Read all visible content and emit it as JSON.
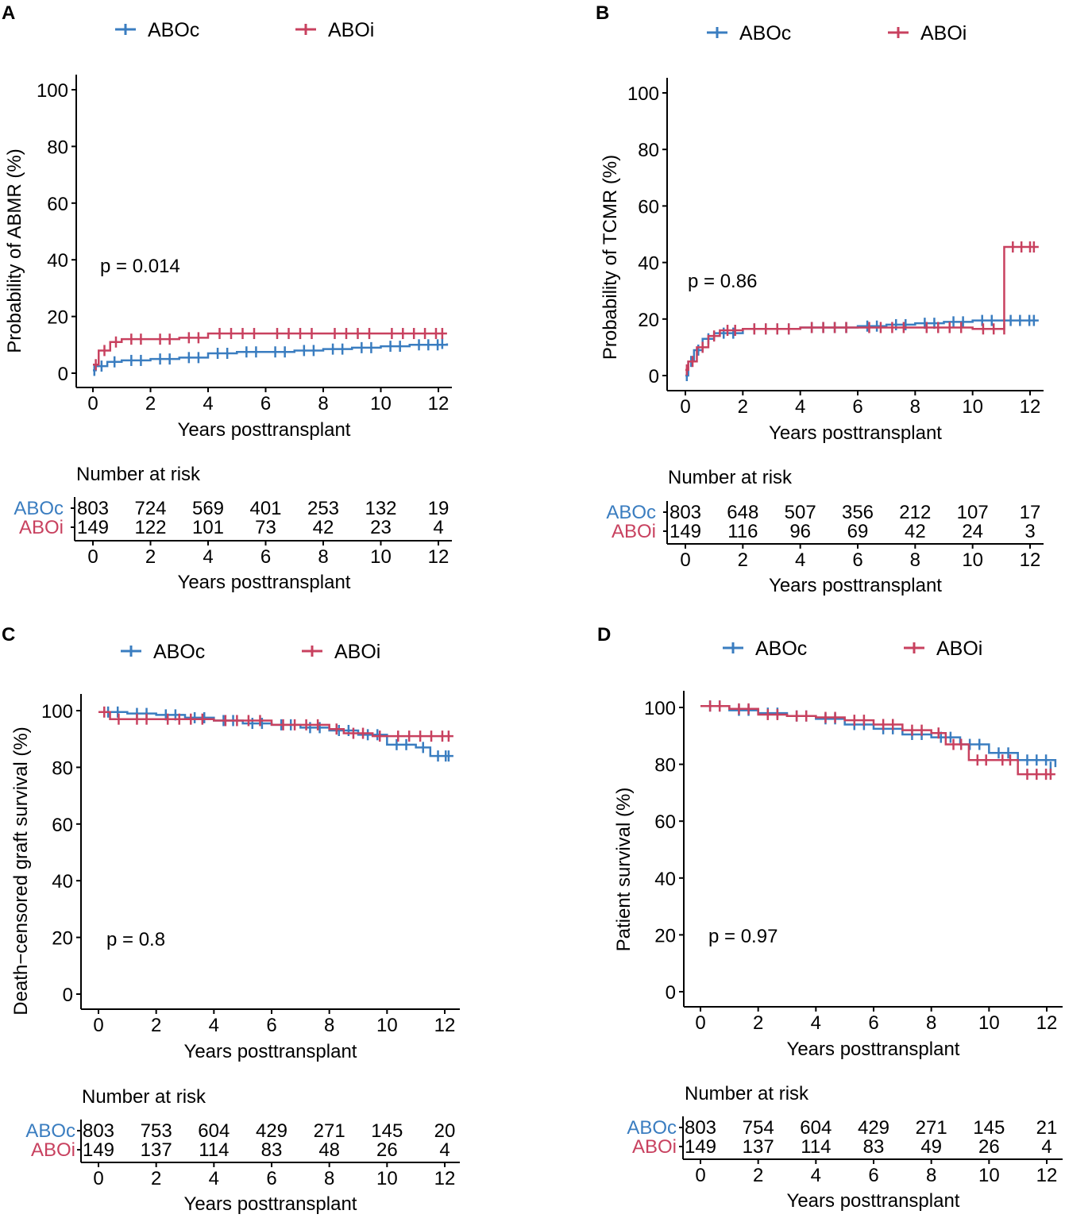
{
  "colors": {
    "aboc": "#3a7dc0",
    "aboi": "#c8415f"
  },
  "legend": {
    "aboc": "ABOc",
    "aboi": "ABOi"
  },
  "chart_data": [
    {
      "type": "line",
      "panel": "A",
      "ylabel": "Probability of ABMR (%)",
      "xlabel": "Years posttransplant",
      "xlim": [
        0,
        12
      ],
      "ylim": [
        0,
        100
      ],
      "xticks": [
        0,
        2,
        4,
        6,
        8,
        10,
        12
      ],
      "yticks": [
        0,
        20,
        40,
        60,
        80,
        100
      ],
      "pvalue": "p = 0.014",
      "series": [
        {
          "name": "ABOc",
          "x": [
            0,
            0.1,
            0.5,
            1,
            2,
            3,
            4,
            5,
            6,
            7,
            8,
            9,
            10,
            11,
            12.3
          ],
          "y": [
            1,
            2.5,
            4,
            4.5,
            5,
            5.5,
            7,
            7.5,
            7.5,
            8,
            8.5,
            9,
            9.5,
            10,
            10.5
          ]
        },
        {
          "name": "ABOi",
          "x": [
            0,
            0.2,
            0.6,
            1,
            2,
            3,
            4,
            6,
            8,
            10,
            12.3
          ],
          "y": [
            3,
            8,
            11,
            12,
            12,
            12.5,
            14,
            14,
            14,
            14,
            14
          ]
        }
      ],
      "risk_table": {
        "title": "Number at risk",
        "times": [
          0,
          2,
          4,
          6,
          8,
          10,
          12
        ],
        "rows": [
          {
            "label": "ABOc",
            "values": [
              "803",
              "724",
              "569",
              "401",
              "253",
              "132",
              "19"
            ]
          },
          {
            "label": "ABOi",
            "values": [
              "149",
              "122",
              "101",
              "73",
              "42",
              "23",
              "4"
            ]
          }
        ]
      }
    },
    {
      "type": "line",
      "panel": "B",
      "ylabel": "Probability of TCMR (%)",
      "xlabel": "Years posttransplant",
      "xlim": [
        0,
        12
      ],
      "ylim": [
        0,
        100
      ],
      "xticks": [
        0,
        2,
        4,
        6,
        8,
        10,
        12
      ],
      "yticks": [
        0,
        20,
        40,
        60,
        80,
        100
      ],
      "pvalue": "p = 0.86",
      "series": [
        {
          "name": "ABOc",
          "x": [
            0,
            0.1,
            0.3,
            0.6,
            1,
            2,
            4,
            6,
            7,
            8,
            9,
            10,
            11,
            12.3
          ],
          "y": [
            0,
            5,
            9,
            13,
            15,
            16.5,
            17,
            17.5,
            18,
            18.5,
            19,
            19.5,
            19.5,
            19.5
          ]
        },
        {
          "name": "ABOi",
          "x": [
            0,
            0.1,
            0.4,
            0.8,
            1.2,
            2,
            4,
            6,
            8,
            10,
            11.1,
            11.1,
            12.3
          ],
          "y": [
            2,
            5,
            10,
            14,
            16,
            16.5,
            17,
            17,
            17,
            16.5,
            16.5,
            45.5,
            45.5
          ]
        }
      ],
      "risk_table": {
        "title": "Number at risk",
        "times": [
          0,
          2,
          4,
          6,
          8,
          10,
          12
        ],
        "rows": [
          {
            "label": "ABOc",
            "values": [
              "803",
              "648",
              "507",
              "356",
              "212",
              "107",
              "17"
            ]
          },
          {
            "label": "ABOi",
            "values": [
              "149",
              "116",
              "96",
              "69",
              "42",
              "24",
              "3"
            ]
          }
        ]
      }
    },
    {
      "type": "line",
      "panel": "C",
      "ylabel": "Death−censored graft survival (%)",
      "xlabel": "Years posttransplant",
      "xlim": [
        0,
        12
      ],
      "ylim": [
        0,
        100
      ],
      "xticks": [
        0,
        2,
        4,
        6,
        8,
        10,
        12
      ],
      "yticks": [
        0,
        20,
        40,
        60,
        80,
        100
      ],
      "pvalue": "p = 0.8",
      "series": [
        {
          "name": "ABOc",
          "x": [
            0,
            1,
            2,
            3,
            4,
            5,
            6,
            7,
            8,
            9,
            10,
            11,
            11.5,
            12.3
          ],
          "y": [
            99.5,
            99,
            98.5,
            97.5,
            96.5,
            95.5,
            95,
            94,
            93,
            91.5,
            88,
            87,
            84,
            84
          ]
        },
        {
          "name": "ABOi",
          "x": [
            0,
            0.4,
            1,
            2,
            4,
            6,
            8,
            8.5,
            9.5,
            10,
            12.3
          ],
          "y": [
            99.5,
            97,
            97,
            97,
            96.5,
            95,
            93.5,
            92,
            91,
            91,
            91
          ]
        }
      ],
      "risk_table": {
        "title": "Number at risk",
        "times": [
          0,
          2,
          4,
          6,
          8,
          10,
          12
        ],
        "rows": [
          {
            "label": "ABOc",
            "values": [
              "803",
              "753",
              "604",
              "429",
              "271",
              "145",
              "20"
            ]
          },
          {
            "label": "ABOi",
            "values": [
              "149",
              "137",
              "114",
              "83",
              "48",
              "26",
              "4"
            ]
          }
        ]
      }
    },
    {
      "type": "line",
      "panel": "D",
      "ylabel": "Patient survival (%)",
      "xlabel": "Years posttransplant",
      "xlim": [
        0,
        12
      ],
      "ylim": [
        0,
        100
      ],
      "xticks": [
        0,
        2,
        4,
        6,
        8,
        10,
        12
      ],
      "yticks": [
        0,
        20,
        40,
        60,
        80,
        100
      ],
      "pvalue": "p = 0.97",
      "series": [
        {
          "name": "ABOc",
          "x": [
            0,
            1,
            2,
            3,
            4,
            5,
            6,
            7,
            8,
            9,
            10,
            11,
            12.3
          ],
          "y": [
            100.5,
            99,
            98,
            97,
            96,
            94,
            92.5,
            90.5,
            89.5,
            87,
            84,
            81.5,
            79
          ]
        },
        {
          "name": "ABOi",
          "x": [
            0,
            1,
            2,
            3,
            4,
            5,
            6,
            7,
            8,
            8.5,
            9.3,
            10.2,
            11,
            12.3
          ],
          "y": [
            100.5,
            99.5,
            97.5,
            97,
            96.5,
            95.5,
            94,
            92,
            91,
            87,
            81.5,
            81.5,
            76.5,
            76.5
          ]
        }
      ],
      "risk_table": {
        "title": "Number at risk",
        "times": [
          0,
          2,
          4,
          6,
          8,
          10,
          12
        ],
        "rows": [
          {
            "label": "ABOc",
            "values": [
              "803",
              "754",
              "604",
              "429",
              "271",
              "145",
              "21"
            ]
          },
          {
            "label": "ABOi",
            "values": [
              "149",
              "137",
              "114",
              "83",
              "49",
              "26",
              "4"
            ]
          }
        ]
      }
    }
  ]
}
